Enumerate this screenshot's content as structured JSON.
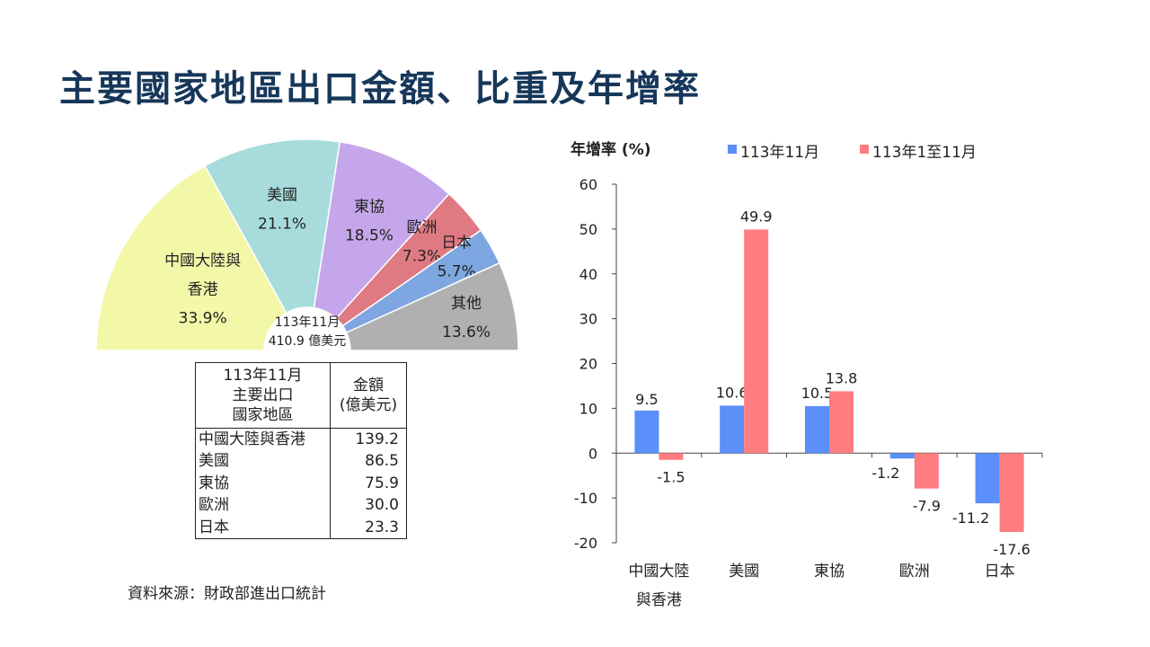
{
  "title": "主要國家地區出口金額、比重及年增率",
  "colors": {
    "title": "#16375a",
    "series_month": "#5b8ff9",
    "series_ytd": "#ff7c80"
  },
  "chart_data": [
    {
      "type": "pie",
      "style": "half-donut",
      "center_label": [
        "113年11月",
        "410.9 億美元"
      ],
      "slices": [
        {
          "label_lines": [
            "中國大陸與",
            "香港"
          ],
          "label": "中國大陸與香港",
          "value": 33.9,
          "text": "33.9%",
          "color": "#f3f8a8"
        },
        {
          "label_lines": [
            "美國"
          ],
          "label": "美國",
          "value": 21.1,
          "text": "21.1%",
          "color": "#a8dcdc"
        },
        {
          "label_lines": [
            "東協"
          ],
          "label": "東協",
          "value": 18.5,
          "text": "18.5%",
          "color": "#c6a6ea"
        },
        {
          "label_lines": [
            "歐洲"
          ],
          "label": "歐洲",
          "value": 7.3,
          "text": "7.3%",
          "color": "#e07a82"
        },
        {
          "label_lines": [
            "日本"
          ],
          "label": "日本",
          "value": 5.7,
          "text": "5.7%",
          "color": "#7ea6e0"
        },
        {
          "label_lines": [
            "其他"
          ],
          "label": "其他",
          "value": 13.6,
          "text": "13.6%",
          "color": "#b0b0b0"
        }
      ]
    },
    {
      "type": "table",
      "header": {
        "region_lines": [
          "113年11月",
          "主要出口",
          "國家地區"
        ],
        "amount_lines": [
          "金額",
          "(億美元)"
        ]
      },
      "rows": [
        {
          "region": "中國大陸與香港",
          "amount": "139.2"
        },
        {
          "region": "美國",
          "amount": "86.5"
        },
        {
          "region": "東協",
          "amount": "75.9"
        },
        {
          "region": "歐洲",
          "amount": "30.0"
        },
        {
          "region": "日本",
          "amount": "23.3"
        }
      ]
    },
    {
      "type": "bar",
      "ylabel": "年增率 (%)",
      "ylim": [
        -20,
        60
      ],
      "yticks": [
        60,
        50,
        40,
        30,
        20,
        10,
        0,
        -10,
        -20
      ],
      "grid": false,
      "legend_position": "top",
      "categories": [
        [
          "中國大陸",
          "與香港"
        ],
        [
          "美國"
        ],
        [
          "東協"
        ],
        [
          "歐洲"
        ],
        [
          "日本"
        ]
      ],
      "series": [
        {
          "name": "113年11月",
          "color": "#5b8ff9",
          "values": [
            9.5,
            10.6,
            10.5,
            -1.2,
            -11.2
          ]
        },
        {
          "name": "113年1至11月",
          "color": "#ff7c80",
          "values": [
            -1.5,
            49.9,
            13.8,
            -7.9,
            -17.6
          ]
        }
      ]
    }
  ],
  "source": "資料來源：財政部進出口統計"
}
